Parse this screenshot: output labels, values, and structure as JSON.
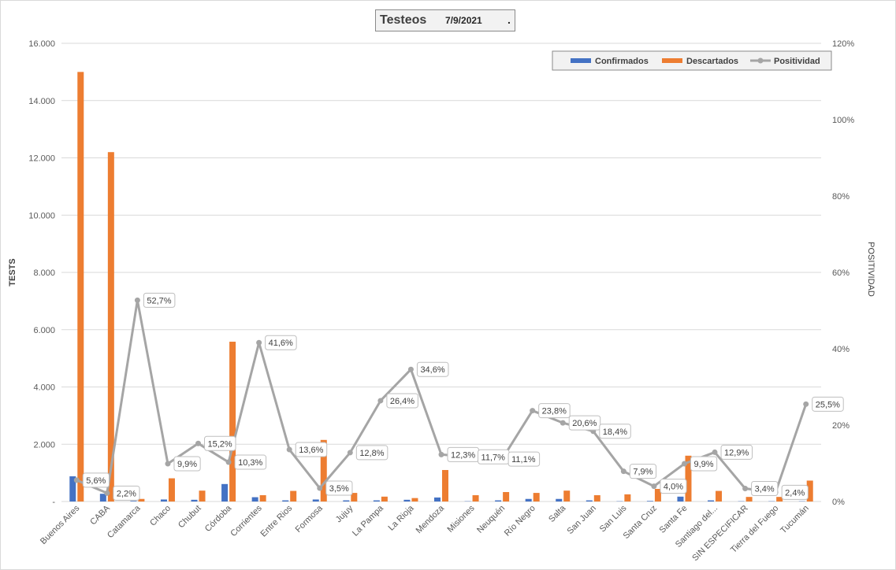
{
  "header": {
    "title": "Testeos",
    "date": "7/9/2021",
    "dot": "."
  },
  "colors": {
    "confirmados": "#4472C4",
    "descartados": "#ED7D31",
    "positividad": "#A5A5A5",
    "gridline": "#D9D9D9"
  },
  "chart_data": {
    "type": "bar",
    "ylabel": "TESTS",
    "y2label": "POSITIVIDAD",
    "ylim": [
      0,
      16000
    ],
    "y2lim": [
      0,
      120
    ],
    "yticks": [
      "-",
      "2.000",
      "4.000",
      "6.000",
      "8.000",
      "10.000",
      "12.000",
      "14.000",
      "16.000"
    ],
    "y2ticks": [
      "0%",
      "20%",
      "40%",
      "60%",
      "80%",
      "100%",
      "120%"
    ],
    "grid": true,
    "legend_position": "top-right",
    "categories": [
      "Buenos Aires",
      "CABA",
      "Catamarca",
      "Chaco",
      "Chubut",
      "Córdoba",
      "Corrientes",
      "Entre Rios",
      "Formosa",
      "Jujuy",
      "La Pampa",
      "La Rioja",
      "Mendoza",
      "Misiones",
      "Neuquén",
      "Río Negro",
      "Salta",
      "San Juan",
      "San Luis",
      "Santa Cruz",
      "Santa Fe",
      "Santiago del...",
      "SIN ESPECIFICAR",
      "Tierra del Fuego",
      "Tucumán"
    ],
    "series": [
      {
        "name": "Confirmados",
        "kind": "bar",
        "axis": "left",
        "values": [
          880,
          270,
          20,
          70,
          60,
          610,
          150,
          40,
          70,
          40,
          40,
          60,
          140,
          10,
          40,
          90,
          90,
          40,
          10,
          20,
          170,
          40,
          10,
          10,
          10
        ]
      },
      {
        "name": "Descartados",
        "kind": "bar",
        "axis": "left",
        "values": [
          15000,
          12200,
          90,
          810,
          380,
          5580,
          220,
          370,
          2150,
          300,
          170,
          120,
          1100,
          220,
          330,
          300,
          380,
          220,
          250,
          440,
          1600,
          370,
          160,
          160,
          730
        ]
      },
      {
        "name": "Positividad",
        "kind": "line",
        "axis": "right",
        "values": [
          5.6,
          2.2,
          52.7,
          9.9,
          15.2,
          10.3,
          41.6,
          13.6,
          3.5,
          12.8,
          26.4,
          34.6,
          12.3,
          11.7,
          11.1,
          23.8,
          20.6,
          18.4,
          7.9,
          4.0,
          9.9,
          12.9,
          3.4,
          2.4,
          25.5
        ],
        "labels": [
          "5,6%",
          "2,2%",
          "52,7%",
          "9,9%",
          "15,2%",
          "10,3%",
          "41,6%",
          "13,6%",
          "3,5%",
          "12,8%",
          "26,4%",
          "34,6%",
          "12,3%",
          "11,7%",
          "11,1%",
          "23,8%",
          "20,6%",
          "18,4%",
          "7,9%",
          "4,0%",
          "9,9%",
          "12,9%",
          "3,4%",
          "2,4%",
          "25,5%"
        ]
      }
    ]
  }
}
